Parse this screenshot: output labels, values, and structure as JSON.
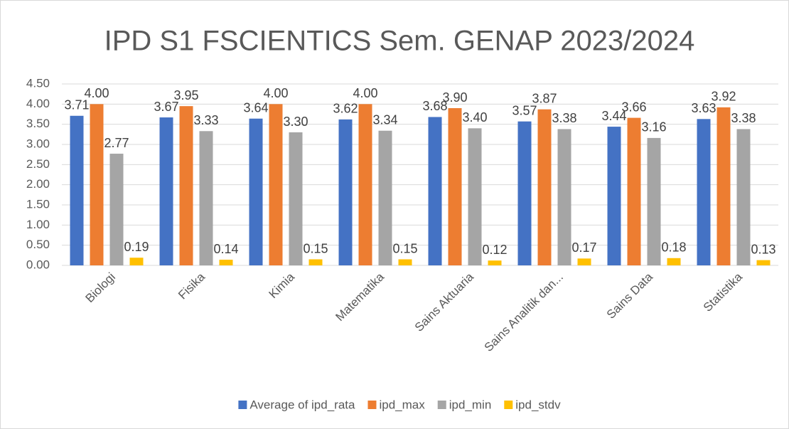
{
  "chart_data": {
    "type": "bar",
    "title": "IPD S1 FSCIENTICS Sem. GENAP 2023/2024",
    "categories": [
      "Biologi",
      "Fisika",
      "Kimia",
      "Matematika",
      "Sains Aktuaria",
      "Sains Analitik dan...",
      "Sains Data",
      "Statistika"
    ],
    "series": [
      {
        "name": "Average of ipd_rata",
        "color": "#4472c4",
        "values": [
          3.71,
          3.67,
          3.64,
          3.62,
          3.68,
          3.57,
          3.44,
          3.63
        ],
        "value_labels": [
          "3.71",
          "3.67",
          "3.64",
          "3.62",
          "3.68",
          "3.57",
          "3.44",
          "3.63"
        ]
      },
      {
        "name": "ipd_max",
        "color": "#ed7d31",
        "values": [
          4,
          3.95,
          4,
          4,
          3.9,
          3.87,
          3.66,
          3.92
        ],
        "value_labels": [
          "4.00",
          "3.95",
          "4.00",
          "4.00",
          "3.90",
          "3.87",
          "3.66",
          "3.92"
        ]
      },
      {
        "name": "ipd_min",
        "color": "#a5a5a5",
        "values": [
          2.77,
          3.33,
          3.3,
          3.34,
          3.4,
          3.38,
          3.16,
          3.38
        ],
        "value_labels": [
          "2.77",
          "3.33",
          "3.30",
          "3.34",
          "3.40",
          "3.38",
          "3.16",
          "3.38"
        ]
      },
      {
        "name": "ipd_stdv",
        "color": "#ffc000",
        "values": [
          0.19,
          0.14,
          0.15,
          0.15,
          0.12,
          0.17,
          0.18,
          0.13
        ],
        "value_labels": [
          "0.19",
          "0.14",
          "0.15",
          "0.15",
          "0.12",
          "0.17",
          "0.18",
          "0.13"
        ]
      }
    ],
    "ylim": [
      0,
      4.5
    ],
    "yticks": [
      {
        "value": 0,
        "label": "0.00"
      },
      {
        "value": 0.5,
        "label": "0.50"
      },
      {
        "value": 1,
        "label": "1.00"
      },
      {
        "value": 1.5,
        "label": "1.50"
      },
      {
        "value": 2,
        "label": "2.00"
      },
      {
        "value": 2.5,
        "label": "2.50"
      },
      {
        "value": 3,
        "label": "3.00"
      },
      {
        "value": 3.5,
        "label": "3.50"
      },
      {
        "value": 4,
        "label": "4.00"
      },
      {
        "value": 4.5,
        "label": "4.50"
      }
    ],
    "grid": true,
    "legend": "bottom"
  }
}
